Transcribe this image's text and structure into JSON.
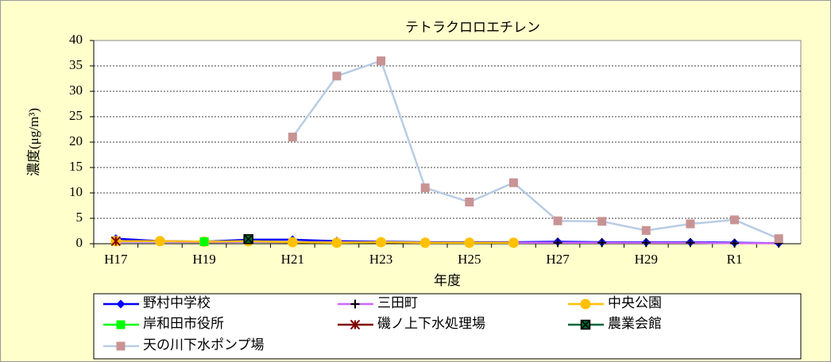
{
  "chart_data": {
    "type": "line",
    "title": "テトラクロロエチレン",
    "x_label": "年度",
    "y_label": "濃度(μg/m³)",
    "categories": [
      "H17",
      null,
      "H19",
      null,
      "H21",
      null,
      "H23",
      null,
      "H25",
      null,
      "H27",
      null,
      "H29",
      null,
      "R1",
      null
    ],
    "ylim": [
      0,
      40
    ],
    "yticks": [
      0,
      5,
      10,
      15,
      20,
      25,
      30,
      35,
      40
    ],
    "grid": true,
    "series": [
      {
        "name": "野村中学校",
        "color": "#0000ff",
        "marker": "diamond",
        "marker_color": "#0000ff",
        "values": [
          1.0,
          0.5,
          0.4,
          0.8,
          0.8,
          0.5,
          0.4,
          0.3,
          0.3,
          0.3,
          0.4,
          0.3,
          0.3,
          0.3,
          0.2,
          0.1
        ]
      },
      {
        "name": "三田町",
        "color": "#cc66ff",
        "marker": "plus",
        "marker_color": "#cc66ff",
        "values": [
          0.4,
          0.4,
          0.3,
          0.4,
          0.3,
          0.3,
          0.3,
          0.2,
          0.2,
          0.2,
          0.2,
          0.2,
          0.2,
          0.2,
          0.1,
          0.1
        ]
      },
      {
        "name": "中央公園",
        "color": "#ffc000",
        "marker": "circle",
        "marker_color": "#ffc000",
        "values": [
          0.5,
          0.5,
          0.4,
          0.5,
          0.3,
          0.2,
          0.3,
          0.2,
          0.2,
          0.2,
          null,
          null,
          null,
          null,
          null,
          null
        ]
      },
      {
        "name": "岸和田市役所",
        "color": "#00ff00",
        "marker": "square",
        "marker_color": "#00ff00",
        "values": [
          null,
          null,
          0.4,
          null,
          null,
          null,
          null,
          null,
          null,
          null,
          null,
          null,
          null,
          null,
          null,
          null
        ]
      },
      {
        "name": "磯ノ上下水処理場",
        "color": "#800000",
        "marker": "star",
        "marker_color": "#800000",
        "values": [
          0.5,
          null,
          null,
          null,
          null,
          null,
          null,
          null,
          null,
          null,
          null,
          null,
          null,
          null,
          null,
          null
        ]
      },
      {
        "name": "農業会館",
        "color": "#006633",
        "marker": "xsquare",
        "marker_color": "#006633",
        "values": [
          null,
          null,
          null,
          0.9,
          null,
          null,
          null,
          null,
          null,
          null,
          null,
          null,
          null,
          null,
          null,
          null
        ]
      },
      {
        "name": "天の川下水ポンプ場",
        "color": "#b8cce4",
        "marker": "square",
        "marker_color": "#c99393",
        "values": [
          null,
          null,
          null,
          null,
          21,
          33,
          36,
          11,
          8.2,
          12,
          4.5,
          4.4,
          2.6,
          3.9,
          4.7,
          1.0
        ]
      }
    ]
  }
}
